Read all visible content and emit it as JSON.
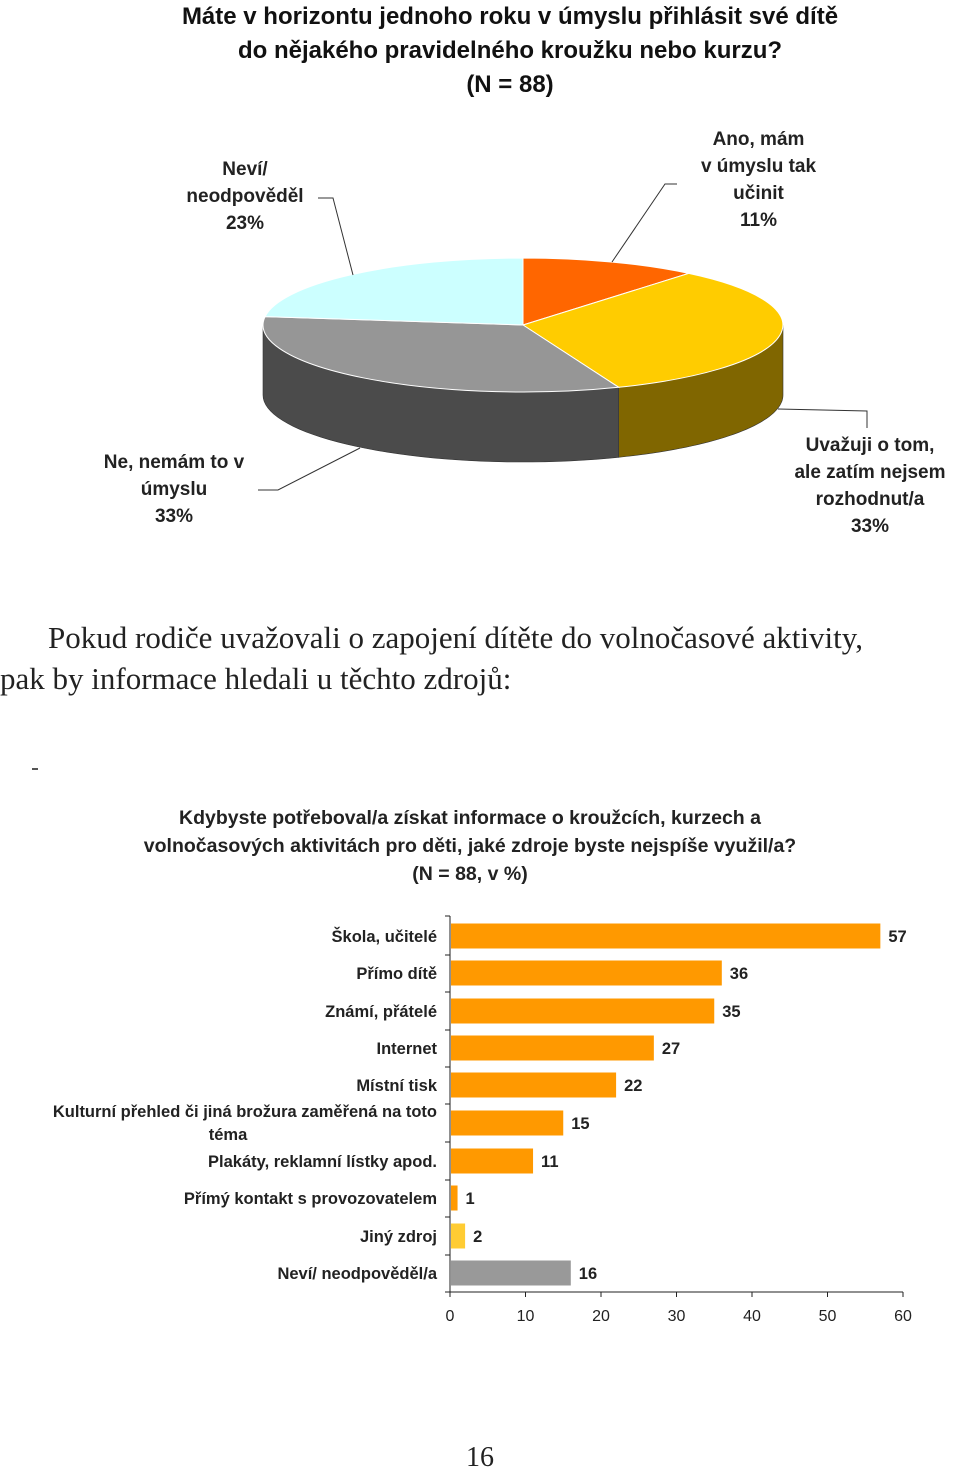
{
  "pie_chart": {
    "title_lines": [
      "Máte v horizontu jednoho roku v úmyslu přihlásit své dítě",
      "do nějakého pravidelného kroužku nebo kurzu?",
      "(N = 88)"
    ],
    "chart_data": {
      "type": "pie",
      "slices": [
        {
          "label_lines": [
            "Ano, mám",
            "v úmyslu tak",
            "učinit",
            "11%"
          ],
          "value": 11,
          "color": "#ff6600",
          "side": "#a84300"
        },
        {
          "label_lines": [
            "Uvažuji o tom,",
            "ale zatím nejsem",
            "rozhodnut/a",
            "33%"
          ],
          "value": 33,
          "color": "#ffcc00",
          "side": "#806600"
        },
        {
          "label_lines": [
            "Ne, nemám to v",
            "úmyslu",
            "33%"
          ],
          "value": 33,
          "color": "#969696",
          "side": "#4b4b4b"
        },
        {
          "label_lines": [
            "Neví/",
            "neodpověděl",
            "23%"
          ],
          "value": 23,
          "color": "#ccffff",
          "side": "#667f7f"
        }
      ]
    }
  },
  "paragraph": {
    "line1": "Pokud rodiče uvažovali o zapojení dítěte do volnočasové aktivity,",
    "line2": "pak by informace hledali u těchto zdrojů:"
  },
  "bar_chart": {
    "title_lines": [
      "Kdybyste potřeboval/a získat informace o kroužcích, kurzech a",
      "volnočasových aktivitách pro děti, jaké zdroje byste nejspíše využil/a?",
      "(N = 88, v %)"
    ],
    "chart_data": {
      "type": "bar",
      "orientation": "horizontal",
      "categories": [
        [
          "Škola, učitelé"
        ],
        [
          "Přímo dítě"
        ],
        [
          "Známí, přátelé"
        ],
        [
          "Internet"
        ],
        [
          "Místní tisk"
        ],
        [
          "Kulturní přehled či jiná brožura zaměřená na toto",
          "téma"
        ],
        [
          "Plakáty, reklamní lístky apod."
        ],
        [
          "Přímý kontakt s provozovatelem"
        ],
        [
          "Jiný zdroj"
        ],
        [
          "Neví/ neodpověděl/a"
        ]
      ],
      "values": [
        57,
        36,
        35,
        27,
        22,
        15,
        11,
        1,
        2,
        16
      ],
      "colors": [
        "#ff9900",
        "#ff9900",
        "#ff9900",
        "#ff9900",
        "#ff9900",
        "#ff9900",
        "#ff9900",
        "#ff9900",
        "#ffcc33",
        "#999999"
      ],
      "xlim": [
        0,
        60
      ],
      "xticks": [
        0,
        10,
        20,
        30,
        40,
        50,
        60
      ]
    }
  },
  "page_number": "16"
}
